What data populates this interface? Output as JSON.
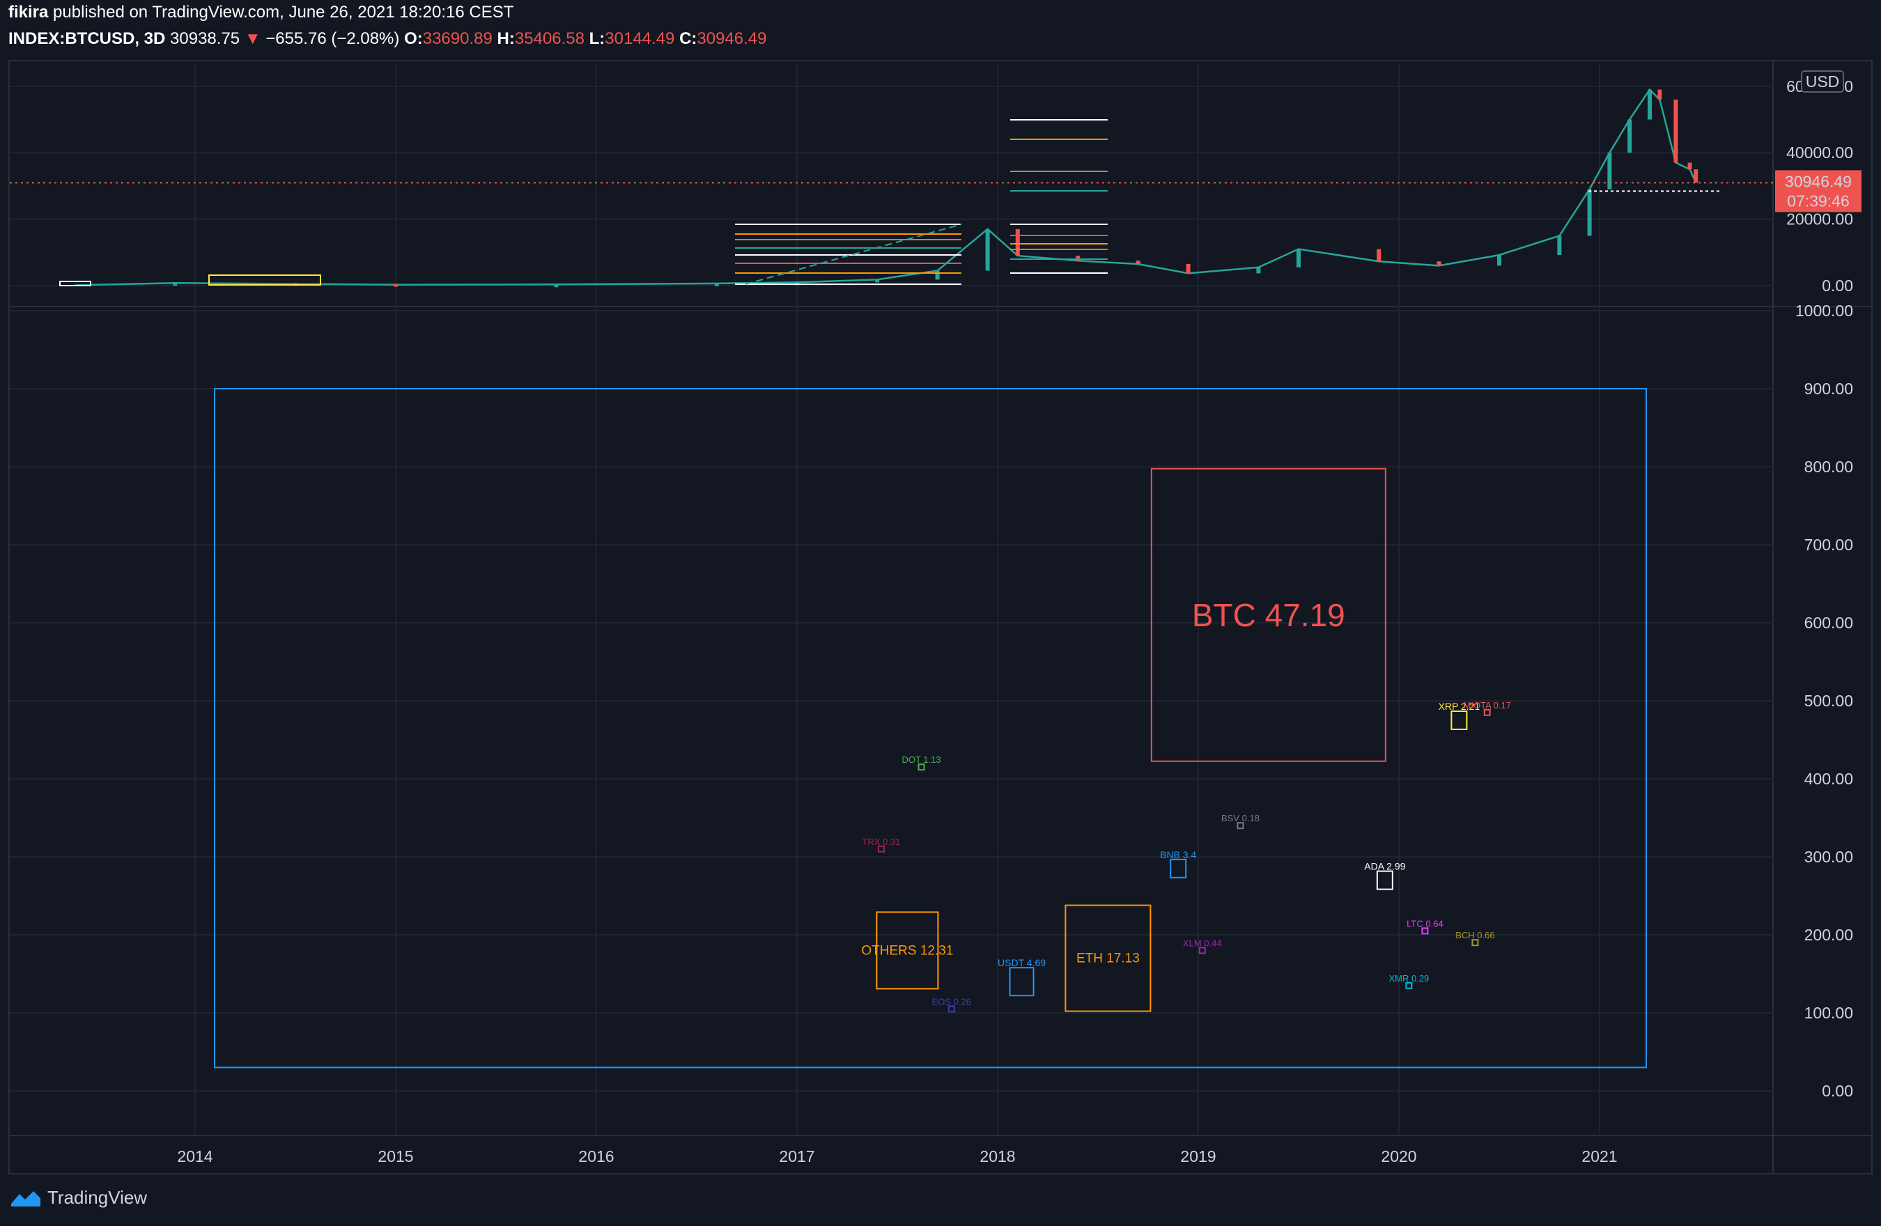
{
  "header": {
    "line1": {
      "user": "fikira",
      "text": " published on TradingView.com, June 26, 2021 18:20:16 CEST"
    },
    "line2": {
      "symbol": "INDEX:BTCUSD, 3D",
      "last": "30938.75",
      "arrow": "▼",
      "change": "−655.76 (−2.08%)",
      "o_label": "O:",
      "o_value": "33690.89",
      "h_label": "H:",
      "h_value": "35406.58",
      "l_label": "L:",
      "l_value": "30144.49",
      "c_label": "C:",
      "c_value": "30946.49"
    }
  },
  "footer": {
    "brand": "TradingView"
  },
  "colors": {
    "bg": "#131722",
    "grid": "#1f2433",
    "up": "#26a69a",
    "down": "#ef5350",
    "text": "#d1d4dc",
    "blue": "#2196f3",
    "orange": "#ff9800"
  },
  "chart_data": [
    {
      "type": "line",
      "pane": "price",
      "currency_label": "USD",
      "x_ticks": [
        "2014",
        "2015",
        "2016",
        "2017",
        "2018",
        "2019",
        "2020",
        "2021"
      ],
      "y_ticks": [
        "0.00",
        "20000.00",
        "40000.00",
        "60000.00"
      ],
      "y_range": [
        0,
        65000
      ],
      "last_price_label": "30946.49",
      "countdown_label": "07:39:46",
      "series": [
        {
          "x": [
            2013.4,
            2013.9,
            2014.5,
            2015.0,
            2015.8,
            2016.6,
            2017.0,
            2017.4,
            2017.7,
            2017.95,
            2018.1,
            2018.4,
            2018.7,
            2018.95,
            2019.3,
            2019.5,
            2019.9,
            2020.2,
            2020.5,
            2020.8,
            2020.95,
            2021.05,
            2021.15,
            2021.25,
            2021.3,
            2021.38,
            2021.45,
            2021.48
          ],
          "y": [
            100,
            800,
            500,
            250,
            350,
            650,
            1000,
            1800,
            4500,
            17000,
            9000,
            7500,
            6500,
            3700,
            5500,
            11000,
            7300,
            6000,
            9200,
            15000,
            29000,
            40000,
            50000,
            59000,
            56000,
            37000,
            35000,
            31000
          ]
        }
      ]
    },
    {
      "type": "scatter",
      "pane": "dominance",
      "y_ticks": [
        "0.00",
        "100.00",
        "200.00",
        "300.00",
        "400.00",
        "500.00",
        "600.00",
        "700.00",
        "800.00",
        "900.00",
        "1000.00"
      ],
      "y_range": [
        -50,
        1000
      ],
      "labels": [
        {
          "name": "BTC 47.19",
          "x": 2019.35,
          "y": 610,
          "color": "#ef5350",
          "size": "big"
        },
        {
          "name": "ETH 17.13",
          "x": 2018.55,
          "y": 170,
          "color": "#ff9800",
          "size": "med"
        },
        {
          "name": "OTHERS 12.31",
          "x": 2017.55,
          "y": 180,
          "color": "#ff9800",
          "size": "med"
        },
        {
          "name": "USDT 4.69",
          "x": 2018.12,
          "y": 140,
          "color": "#2196f3",
          "size": "small"
        },
        {
          "name": "BNB 3.4",
          "x": 2018.9,
          "y": 285,
          "color": "#2196f3",
          "size": "small"
        },
        {
          "name": "ADA 2.99",
          "x": 2019.93,
          "y": 270,
          "color": "#ffffff",
          "size": "small"
        },
        {
          "name": "DOT 1.13",
          "x": 2017.62,
          "y": 415,
          "color": "#4caf50",
          "size": "tiny"
        },
        {
          "name": "XLM 0.44",
          "x": 2019.02,
          "y": 180,
          "color": "#9c27b0",
          "size": "tiny"
        },
        {
          "name": "BCH 0.66",
          "x": 2020.38,
          "y": 190,
          "color": "#a69a26",
          "size": "tiny"
        },
        {
          "name": "LTC 0.64",
          "x": 2020.13,
          "y": 205,
          "color": "#e040fb",
          "size": "tiny"
        },
        {
          "name": "TRX 0.31",
          "x": 2017.42,
          "y": 310,
          "color": "#9c2750",
          "size": "tiny"
        },
        {
          "name": "XMR 0.29",
          "x": 2020.05,
          "y": 135,
          "color": "#00bcd4",
          "size": "tiny"
        },
        {
          "name": "EOS 0.26",
          "x": 2017.77,
          "y": 105,
          "color": "#3f3fa8",
          "size": "tiny"
        },
        {
          "name": "XRP 2.21",
          "x": 2020.3,
          "y": 475,
          "color": "#ffeb3b",
          "size": "small"
        },
        {
          "name": "MIOTA 0.17",
          "x": 2020.44,
          "y": 485,
          "color": "#ef5350",
          "size": "tiny"
        },
        {
          "name": "BSV 0.18",
          "x": 2019.21,
          "y": 340,
          "color": "#787b86",
          "size": "tiny"
        }
      ]
    }
  ]
}
